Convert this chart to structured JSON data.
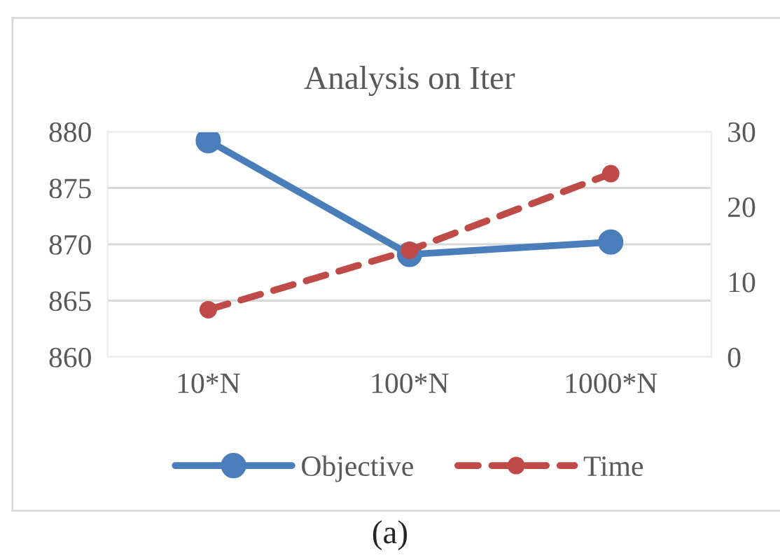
{
  "chart_data": {
    "type": "line",
    "title": "Analysis on Iter",
    "categories": [
      "10*N",
      "100*N",
      "1000*N"
    ],
    "series": [
      {
        "name": "Objective",
        "color": "#4a7ebb",
        "values": [
          879.2,
          869.1,
          870.2
        ],
        "line_style": "solid"
      },
      {
        "name": "Time",
        "color": "#be4b48",
        "values": [
          6.3,
          14.2,
          24.4
        ],
        "axis": "y2",
        "line_style": "dashed"
      }
    ],
    "ylim": [
      860,
      880
    ],
    "yticks": [
      860,
      865,
      870,
      875,
      880
    ],
    "y2lim": [
      0,
      30
    ],
    "y2ticks": [
      0,
      10,
      20,
      30
    ],
    "grid": "y",
    "legend": "bottom",
    "marker": "circle",
    "annotations": [
      "(a)"
    ]
  }
}
